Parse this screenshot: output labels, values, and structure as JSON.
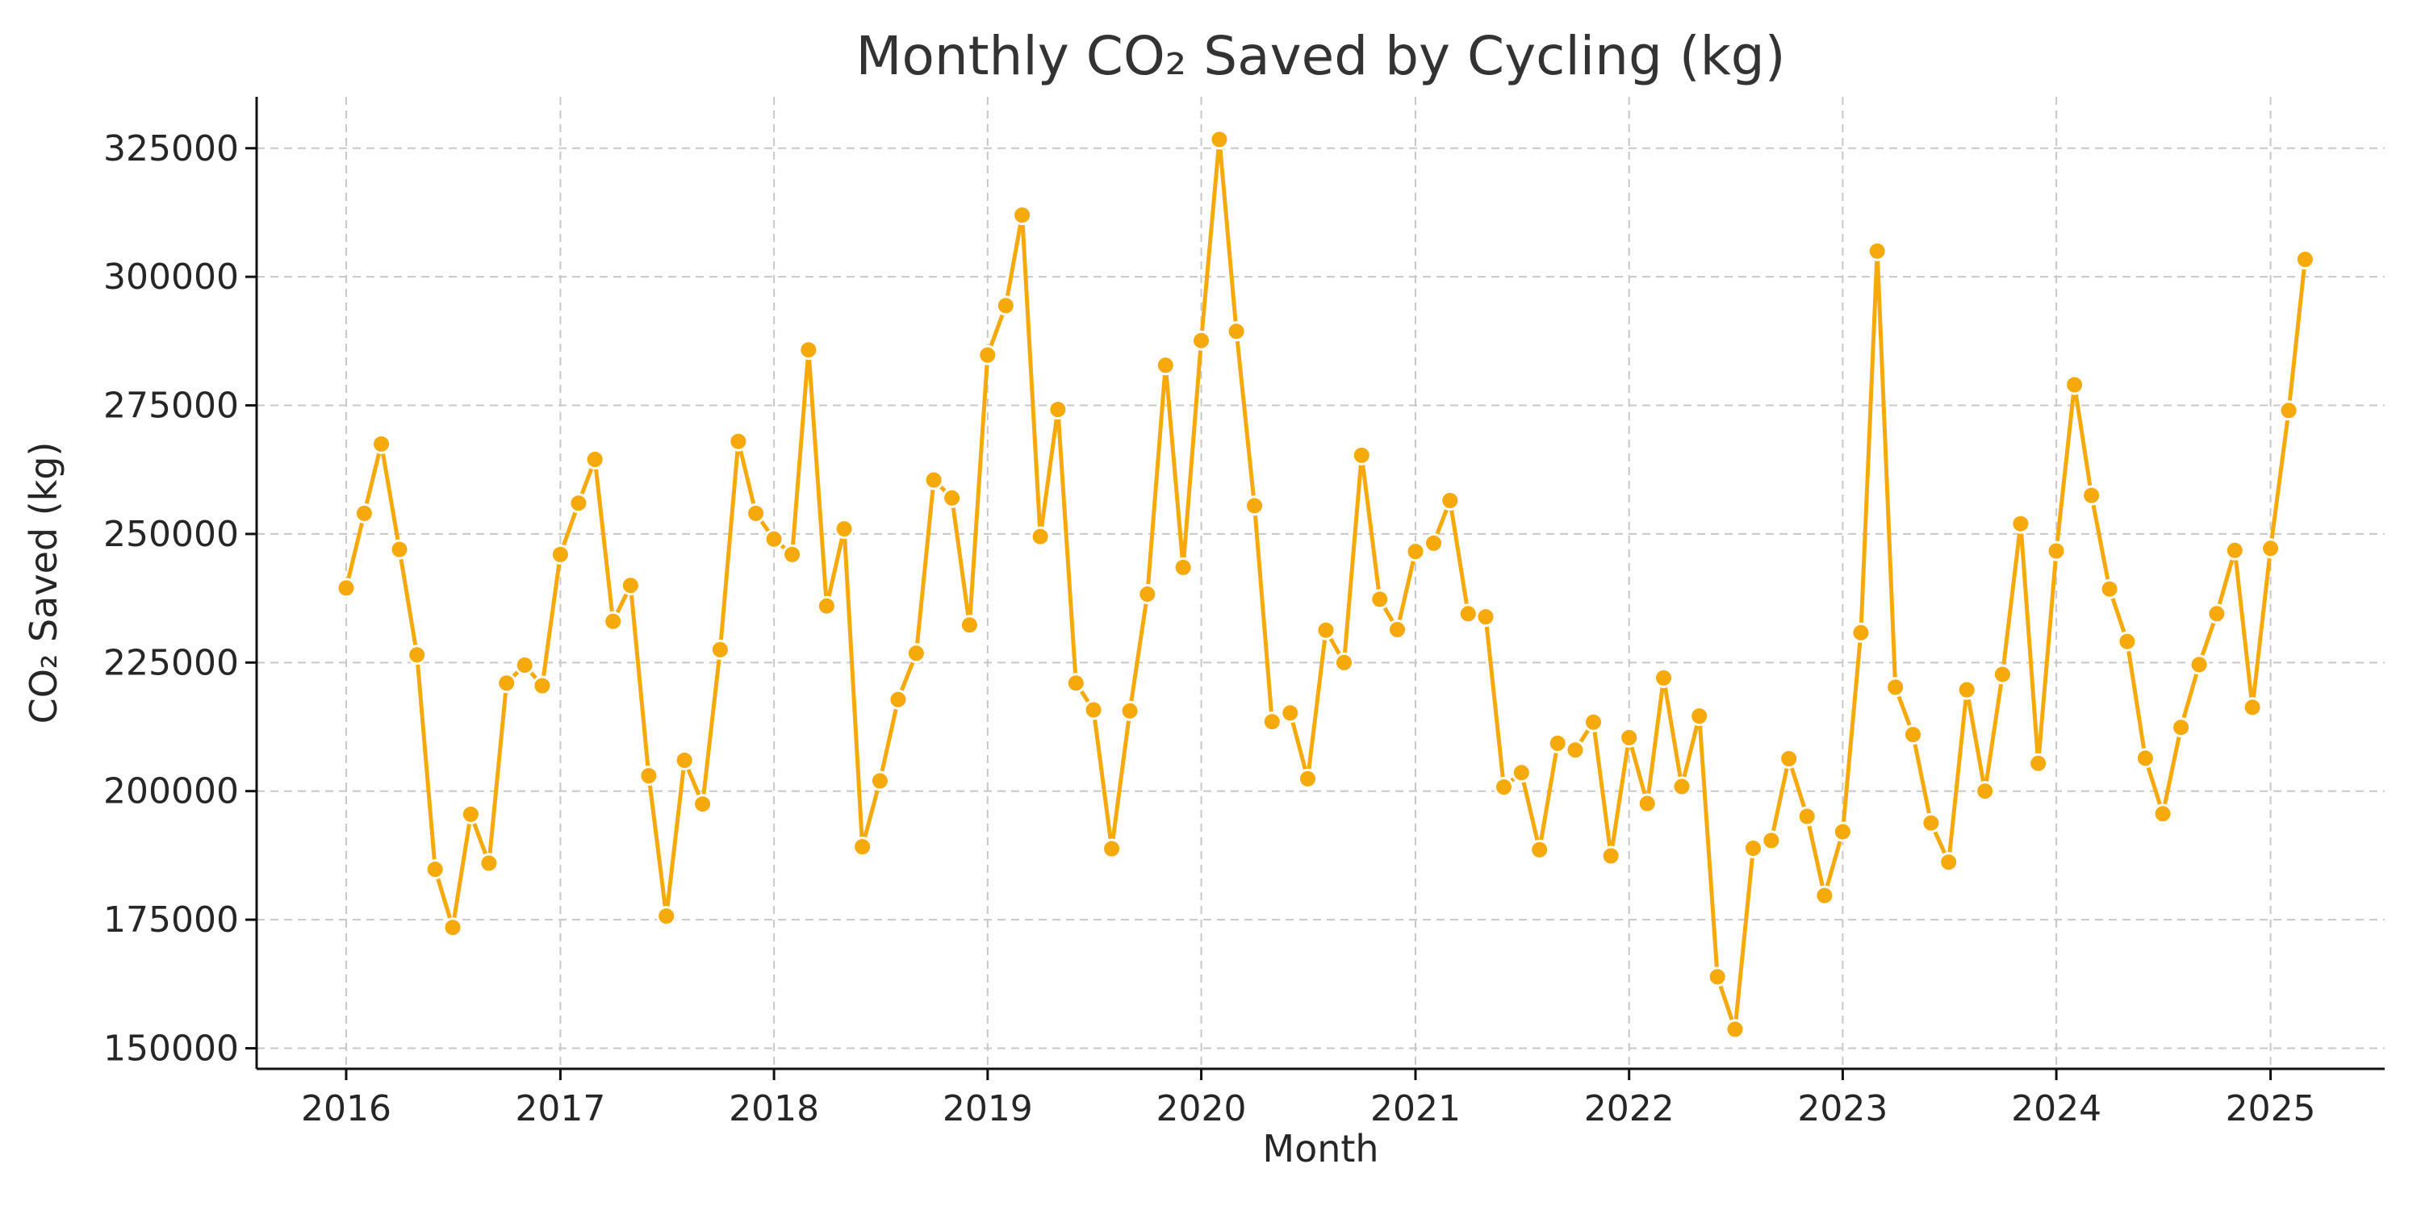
{
  "chart_data": {
    "type": "line",
    "title": "Monthly CO₂ Saved by Cycling (kg)",
    "xlabel": "Month",
    "ylabel": "CO₂ Saved (kg)",
    "ylim": [
      146000,
      335000
    ],
    "xlim": [
      "2015-08-01",
      "2025-07-15"
    ],
    "grid": true,
    "line_color": "#F5A90A",
    "x_ticks": [
      "2016",
      "2017",
      "2018",
      "2019",
      "2020",
      "2021",
      "2022",
      "2023",
      "2024",
      "2025"
    ],
    "y_ticks": [
      150000,
      175000,
      200000,
      225000,
      250000,
      275000,
      300000,
      325000
    ],
    "series": [
      {
        "x": [
          "2016-01",
          "2016-02",
          "2016-03",
          "2016-04",
          "2016-05",
          "2016-06",
          "2016-07",
          "2016-08",
          "2016-09",
          "2016-10",
          "2016-11",
          "2016-12",
          "2017-01",
          "2017-02",
          "2017-03",
          "2017-04",
          "2017-05",
          "2017-06",
          "2017-07",
          "2017-08",
          "2017-09",
          "2017-10",
          "2017-11",
          "2017-12",
          "2018-01",
          "2018-02",
          "2018-03",
          "2018-04",
          "2018-05",
          "2018-06",
          "2018-07",
          "2018-08",
          "2018-09",
          "2018-10",
          "2018-11",
          "2018-12",
          "2019-01",
          "2019-02",
          "2019-03",
          "2019-04",
          "2019-05",
          "2019-06",
          "2019-07",
          "2019-08",
          "2019-09",
          "2019-10",
          "2019-11",
          "2019-12",
          "2020-01",
          "2020-02",
          "2020-03",
          "2020-04",
          "2020-05",
          "2020-06",
          "2020-07",
          "2020-08",
          "2020-09",
          "2020-10",
          "2020-11",
          "2020-12",
          "2021-01",
          "2021-02",
          "2021-03",
          "2021-04",
          "2021-05",
          "2021-06",
          "2021-07",
          "2021-08",
          "2021-09",
          "2021-10",
          "2021-11",
          "2021-12",
          "2022-01",
          "2022-02",
          "2022-03",
          "2022-04",
          "2022-05",
          "2022-06",
          "2022-07",
          "2022-08",
          "2022-09",
          "2022-10",
          "2022-11",
          "2022-12",
          "2023-01",
          "2023-02",
          "2023-03",
          "2023-04",
          "2023-05",
          "2023-06",
          "2023-07",
          "2023-08",
          "2023-09",
          "2023-10",
          "2023-11",
          "2023-12",
          "2024-01",
          "2024-02",
          "2024-03",
          "2024-04",
          "2024-05",
          "2024-06",
          "2024-07",
          "2024-08",
          "2024-09",
          "2024-10",
          "2024-11",
          "2024-12",
          "2025-01",
          "2025-02",
          "2025-03"
        ],
        "values": [
          239500,
          254000,
          267500,
          247000,
          226500,
          184800,
          173500,
          195500,
          186000,
          221000,
          224500,
          220500,
          246000,
          256000,
          264500,
          233000,
          240000,
          203000,
          175700,
          206000,
          197500,
          227500,
          268000,
          254000,
          249000,
          246000,
          285800,
          236000,
          251000,
          189200,
          202000,
          217800,
          226800,
          260500,
          257000,
          232300,
          284800,
          294400,
          312000,
          249500,
          274200,
          221000,
          215800,
          188800,
          215600,
          238300,
          282800,
          243500,
          287600,
          326700,
          289400,
          255500,
          213500,
          215200,
          202400,
          231300,
          225000,
          265300,
          237300,
          231400,
          246600,
          248200,
          256500,
          234500,
          233900,
          200800,
          203600,
          188600,
          209300,
          208000,
          213400,
          187400,
          210400,
          197600,
          222000,
          200900,
          214600,
          163900,
          153700,
          188900,
          190400,
          206300,
          195100,
          179700,
          192100,
          230800,
          305000,
          220200,
          211000,
          193800,
          186200,
          219700,
          200000,
          222700,
          252000,
          205400,
          246700,
          279000,
          257500,
          239300,
          229100,
          206400,
          195600,
          212400,
          224600,
          234500,
          246800,
          216300,
          247200,
          274000,
          303400
        ]
      }
    ]
  }
}
